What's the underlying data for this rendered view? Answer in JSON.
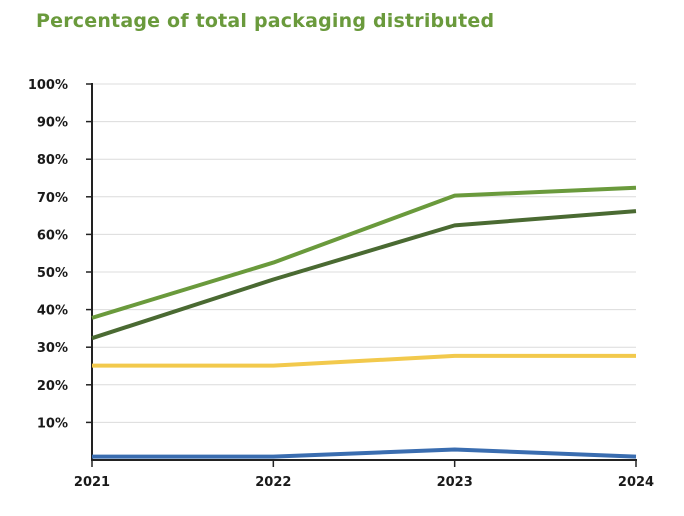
{
  "title": "Percentage of total packaging distributed",
  "chart_data": {
    "type": "line",
    "title": "Percentage of total packaging distributed",
    "xlabel": "",
    "ylabel": "",
    "x": [
      "2021",
      "2022",
      "2023",
      "2024"
    ],
    "ylim": [
      0,
      100
    ],
    "yticks": [
      10,
      20,
      30,
      40,
      50,
      60,
      70,
      80,
      90,
      100
    ],
    "ytick_labels": [
      "10%",
      "20%",
      "30%",
      "40%",
      "50%",
      "60%",
      "70%",
      "80%",
      "90%",
      "100%"
    ],
    "grid": true,
    "series": [
      {
        "color": "#6a9a3c",
        "values": [
          37.8,
          52.5,
          70.3,
          72.4
        ]
      },
      {
        "color": "#4a6a32",
        "values": [
          32.4,
          48.0,
          62.4,
          66.2
        ]
      },
      {
        "color": "#f2c94c",
        "values": [
          25.1,
          25.1,
          27.7,
          27.7
        ]
      },
      {
        "color": "#3a6db0",
        "values": [
          0.9,
          0.9,
          2.8,
          0.9
        ]
      }
    ]
  }
}
